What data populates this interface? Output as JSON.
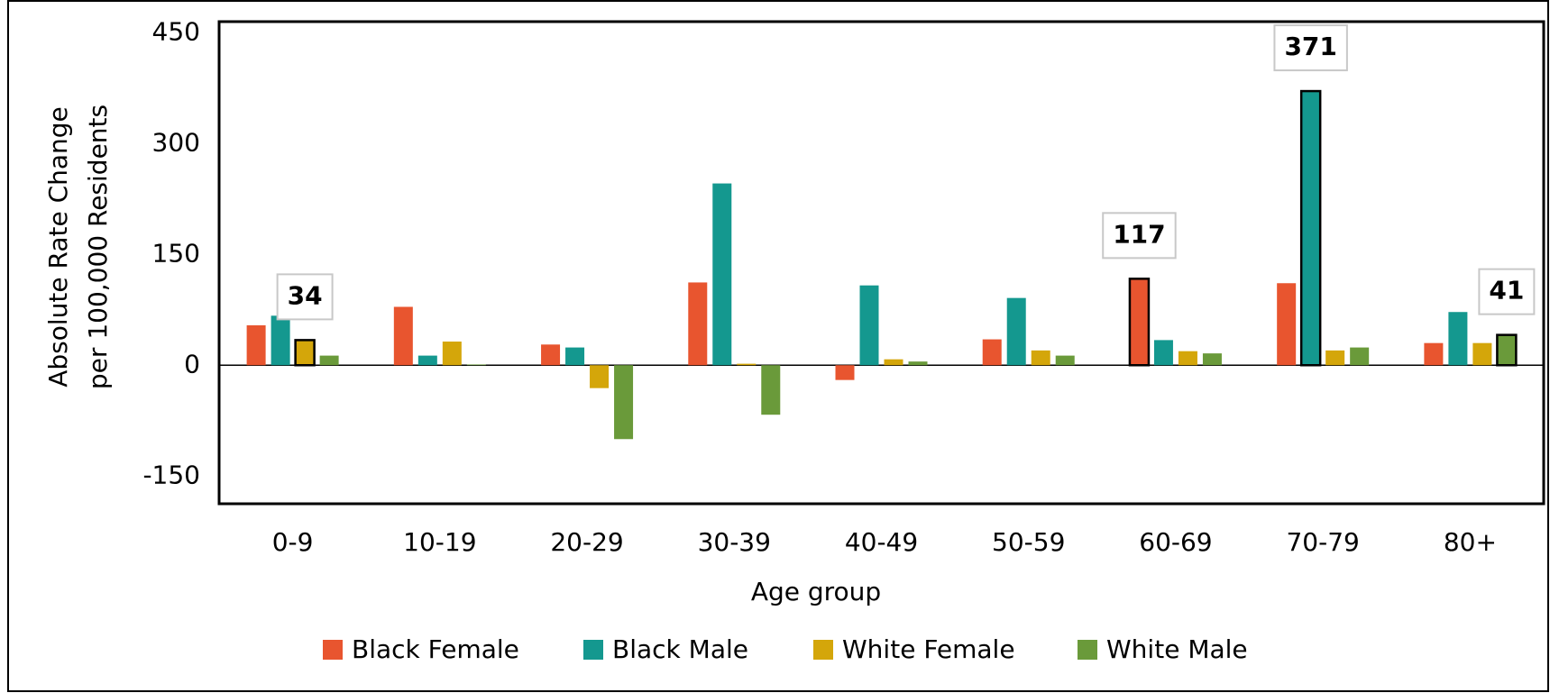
{
  "chart_data": {
    "type": "bar",
    "ylabel": [
      "Absolute Rate Change",
      "per 100,000 Residents"
    ],
    "xlabel": "Age group",
    "categories": [
      "0-9",
      "10-19",
      "20-29",
      "30-39",
      "40-49",
      "50-59",
      "60-69",
      "70-79",
      "80+"
    ],
    "series": [
      {
        "name": "Black Female",
        "color": "#e8552f",
        "values": [
          54,
          79,
          28,
          112,
          -20,
          35,
          117,
          111,
          30
        ],
        "highlight": 6
      },
      {
        "name": "Black Male",
        "color": "#14988f",
        "values": [
          67,
          13,
          24,
          246,
          108,
          91,
          34,
          371,
          72
        ],
        "highlight": 7
      },
      {
        "name": "White Female",
        "color": "#d4a60a",
        "values": [
          34,
          32,
          -31,
          2,
          8,
          20,
          19,
          20,
          30
        ],
        "highlight": 0
      },
      {
        "name": "White Male",
        "color": "#6a9a3a",
        "values": [
          13,
          1,
          -100,
          -67,
          5,
          13,
          16,
          24,
          41
        ],
        "highlight": 8
      }
    ],
    "ylim": [
      -187.5,
      465
    ],
    "yticks": [
      -150,
      0,
      150,
      300,
      450
    ],
    "legend": "bottom"
  }
}
